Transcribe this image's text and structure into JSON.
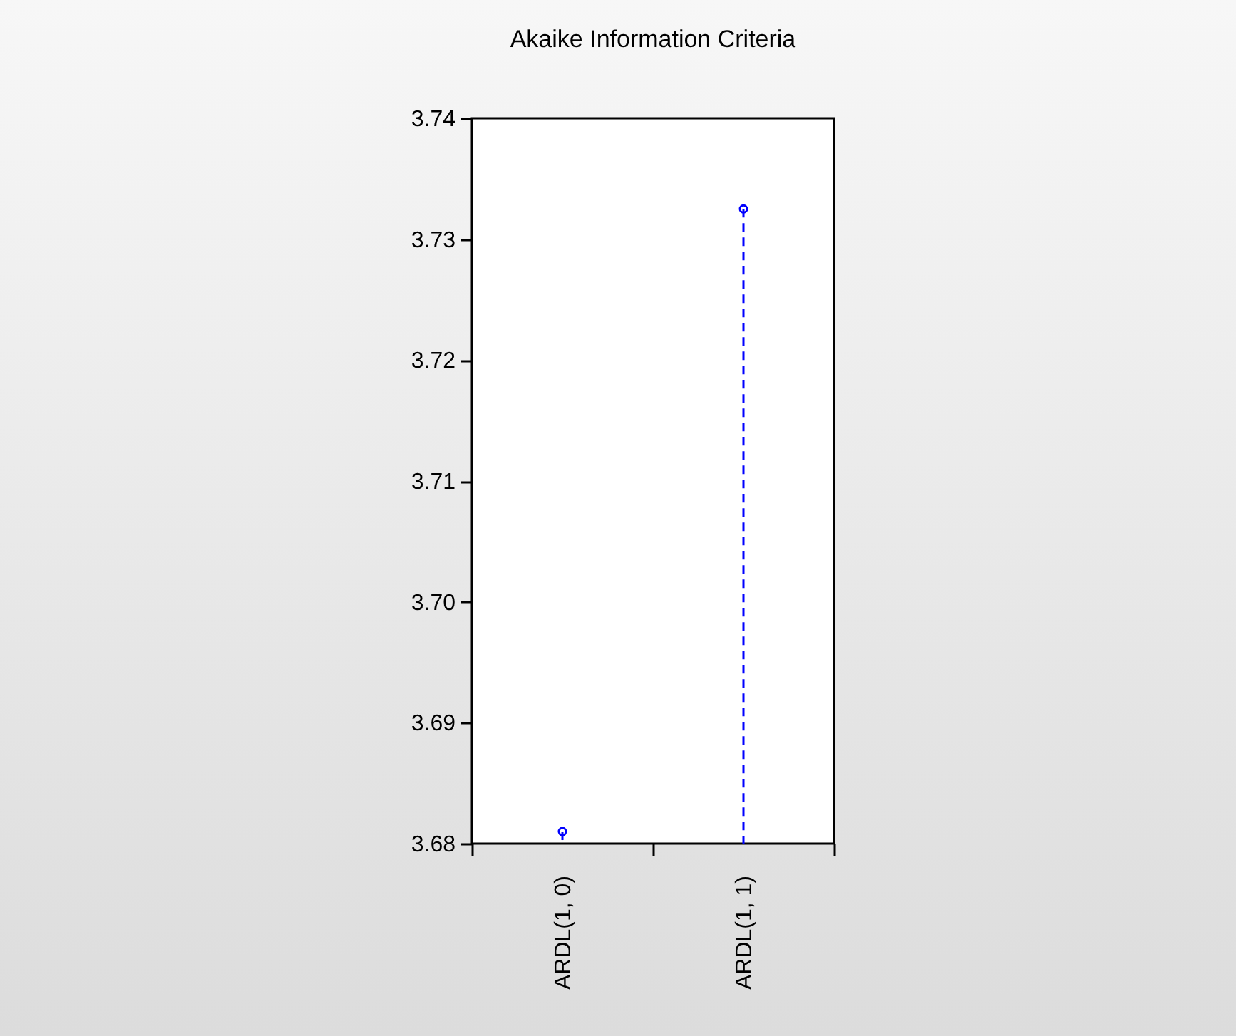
{
  "chart_data": {
    "type": "lollipop",
    "title": "Akaike Information Criteria",
    "categories": [
      "ARDL(1, 0)",
      "ARDL(1, 1)"
    ],
    "values": [
      3.681,
      3.7325
    ],
    "color": "#0000ff",
    "marker": "circle",
    "line_style": "dashed",
    "ylim": [
      3.68,
      3.74
    ],
    "yticks": [
      3.68,
      3.69,
      {
        "value": 3.7,
        "label": "3.70"
      },
      3.71,
      3.72,
      3.73,
      3.74
    ]
  }
}
